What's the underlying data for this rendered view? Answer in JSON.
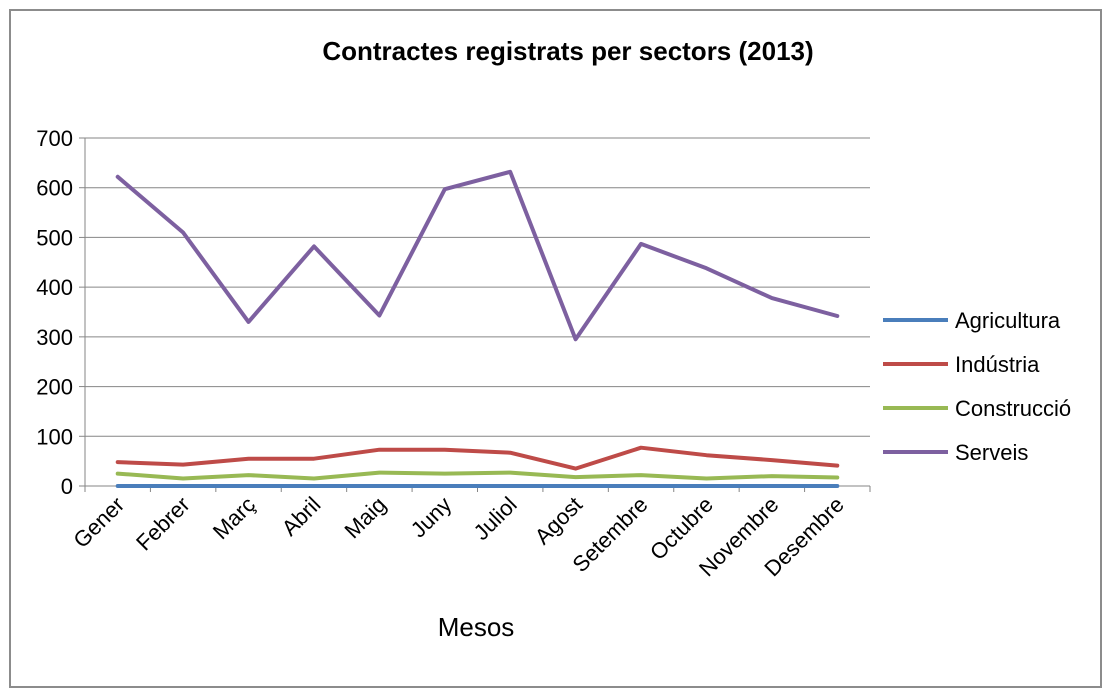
{
  "chart_data": {
    "type": "line",
    "title": "Contractes registrats per sectors (2013)",
    "xlabel": "Mesos",
    "ylabel": "",
    "ylim": [
      0,
      700
    ],
    "yticks": [
      0,
      100,
      200,
      300,
      400,
      500,
      600,
      700
    ],
    "grid": true,
    "legend_position": "right",
    "categories": [
      "Gener",
      "Febrer",
      "Març",
      "Abril",
      "Maig",
      "Juny",
      "Juliol",
      "Agost",
      "Setembre",
      "Octubre",
      "Novembre",
      "Desembre"
    ],
    "series": [
      {
        "name": "Agricultura",
        "color": "#4a7ebb",
        "values": [
          0,
          0,
          0,
          0,
          0,
          0,
          0,
          0,
          0,
          0,
          0,
          0
        ]
      },
      {
        "name": "Indústria",
        "color": "#be4b48",
        "values": [
          48,
          43,
          55,
          55,
          73,
          73,
          67,
          35,
          77,
          62,
          52,
          41
        ]
      },
      {
        "name": "Construcció",
        "color": "#98b954",
        "values": [
          25,
          15,
          22,
          15,
          27,
          25,
          27,
          18,
          22,
          15,
          20,
          17
        ]
      },
      {
        "name": "Serveis",
        "color": "#7d60a0",
        "values": [
          622,
          510,
          330,
          482,
          343,
          597,
          632,
          295,
          487,
          438,
          378,
          342
        ]
      }
    ]
  }
}
